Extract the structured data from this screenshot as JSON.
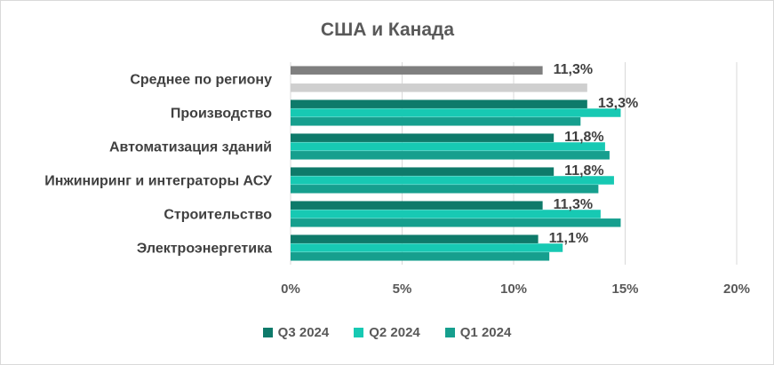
{
  "chart_data": {
    "type": "bar",
    "orientation": "horizontal",
    "title": "США и Канада",
    "categories": [
      "Среднее по региону",
      "Производство",
      "Автоматизация зданий",
      "Инжиниринг и интеграторы АСУ",
      "Строительство",
      "Электроэнергетика"
    ],
    "series": [
      {
        "name": "Q3 2024",
        "values": [
          11.3,
          13.3,
          11.8,
          11.8,
          11.3,
          11.1
        ],
        "color": "#0e7a6a",
        "highlight_color": "#7f7f7f"
      },
      {
        "name": "Q2 2024",
        "values": [
          null,
          14.8,
          14.1,
          14.5,
          13.9,
          12.2
        ],
        "color": "#17c9b3"
      },
      {
        "name": "Q1 2024",
        "values": [
          13.3,
          13.0,
          14.3,
          13.8,
          14.8,
          11.6
        ],
        "color": "#169f8e",
        "highlight_color": "#cfcfcf"
      }
    ],
    "data_labels": [
      "11,3%",
      "13,3%",
      "11,8%",
      "11,8%",
      "11,3%",
      "11,1%"
    ],
    "xlim": [
      0,
      20
    ],
    "xticks": [
      0,
      5,
      10,
      15,
      20
    ],
    "xtick_labels": [
      "0%",
      "5%",
      "10%",
      "15%",
      "20%"
    ],
    "grid": true,
    "legend_position": "bottom"
  }
}
